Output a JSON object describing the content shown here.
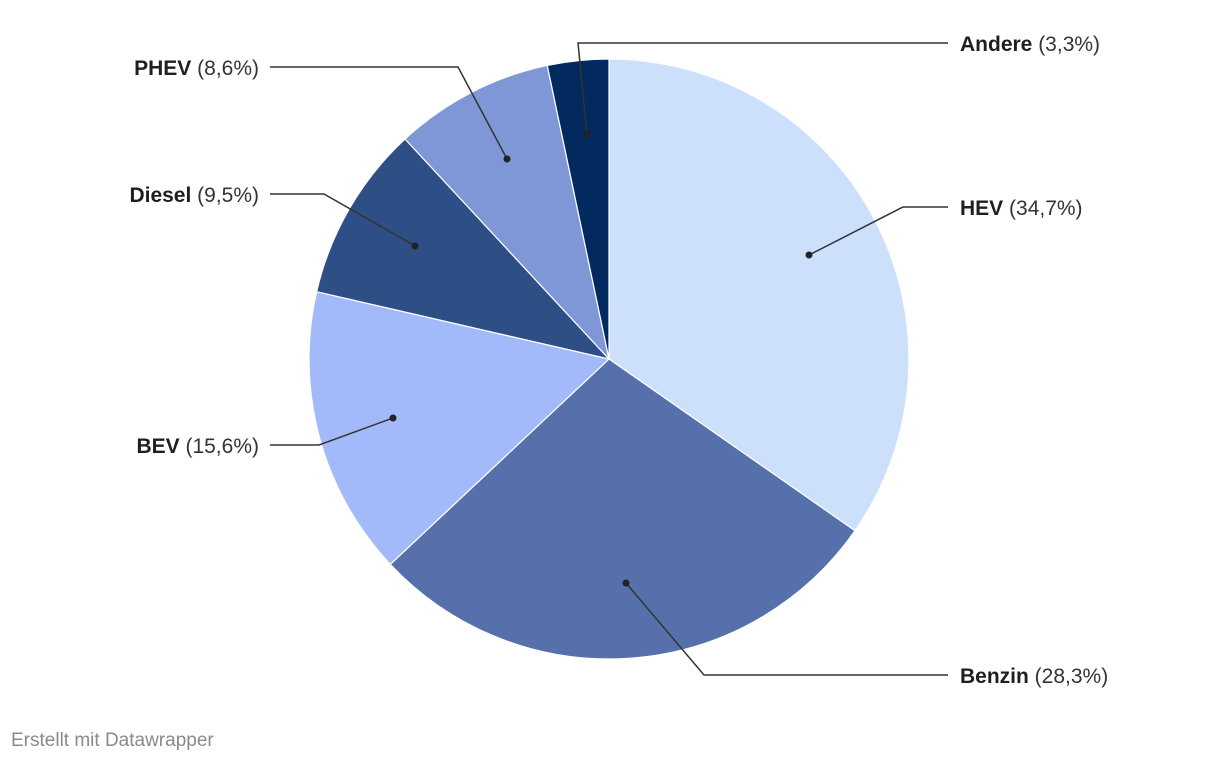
{
  "chart_data": {
    "type": "pie",
    "start_angle_deg": 0,
    "direction": "clockwise",
    "slices": [
      {
        "name": "HEV",
        "label": "(34,7%)",
        "value": 34.7,
        "color": "#cce0fc"
      },
      {
        "name": "Benzin",
        "label": "(28,3%)",
        "value": 28.3,
        "color": "#5670ab"
      },
      {
        "name": "BEV",
        "label": "(15,6%)",
        "value": 15.6,
        "color": "#a3bafa"
      },
      {
        "name": "Diesel",
        "label": "(9,5%)",
        "value": 9.5,
        "color": "#2e4f86"
      },
      {
        "name": "PHEV",
        "label": "(8,6%)",
        "value": 8.6,
        "color": "#7f97d6"
      },
      {
        "name": "Andere",
        "label": "(3,3%)",
        "value": 3.3,
        "color": "#022a5e"
      }
    ]
  },
  "footer": {
    "credit": "Erstellt mit Datawrapper"
  }
}
